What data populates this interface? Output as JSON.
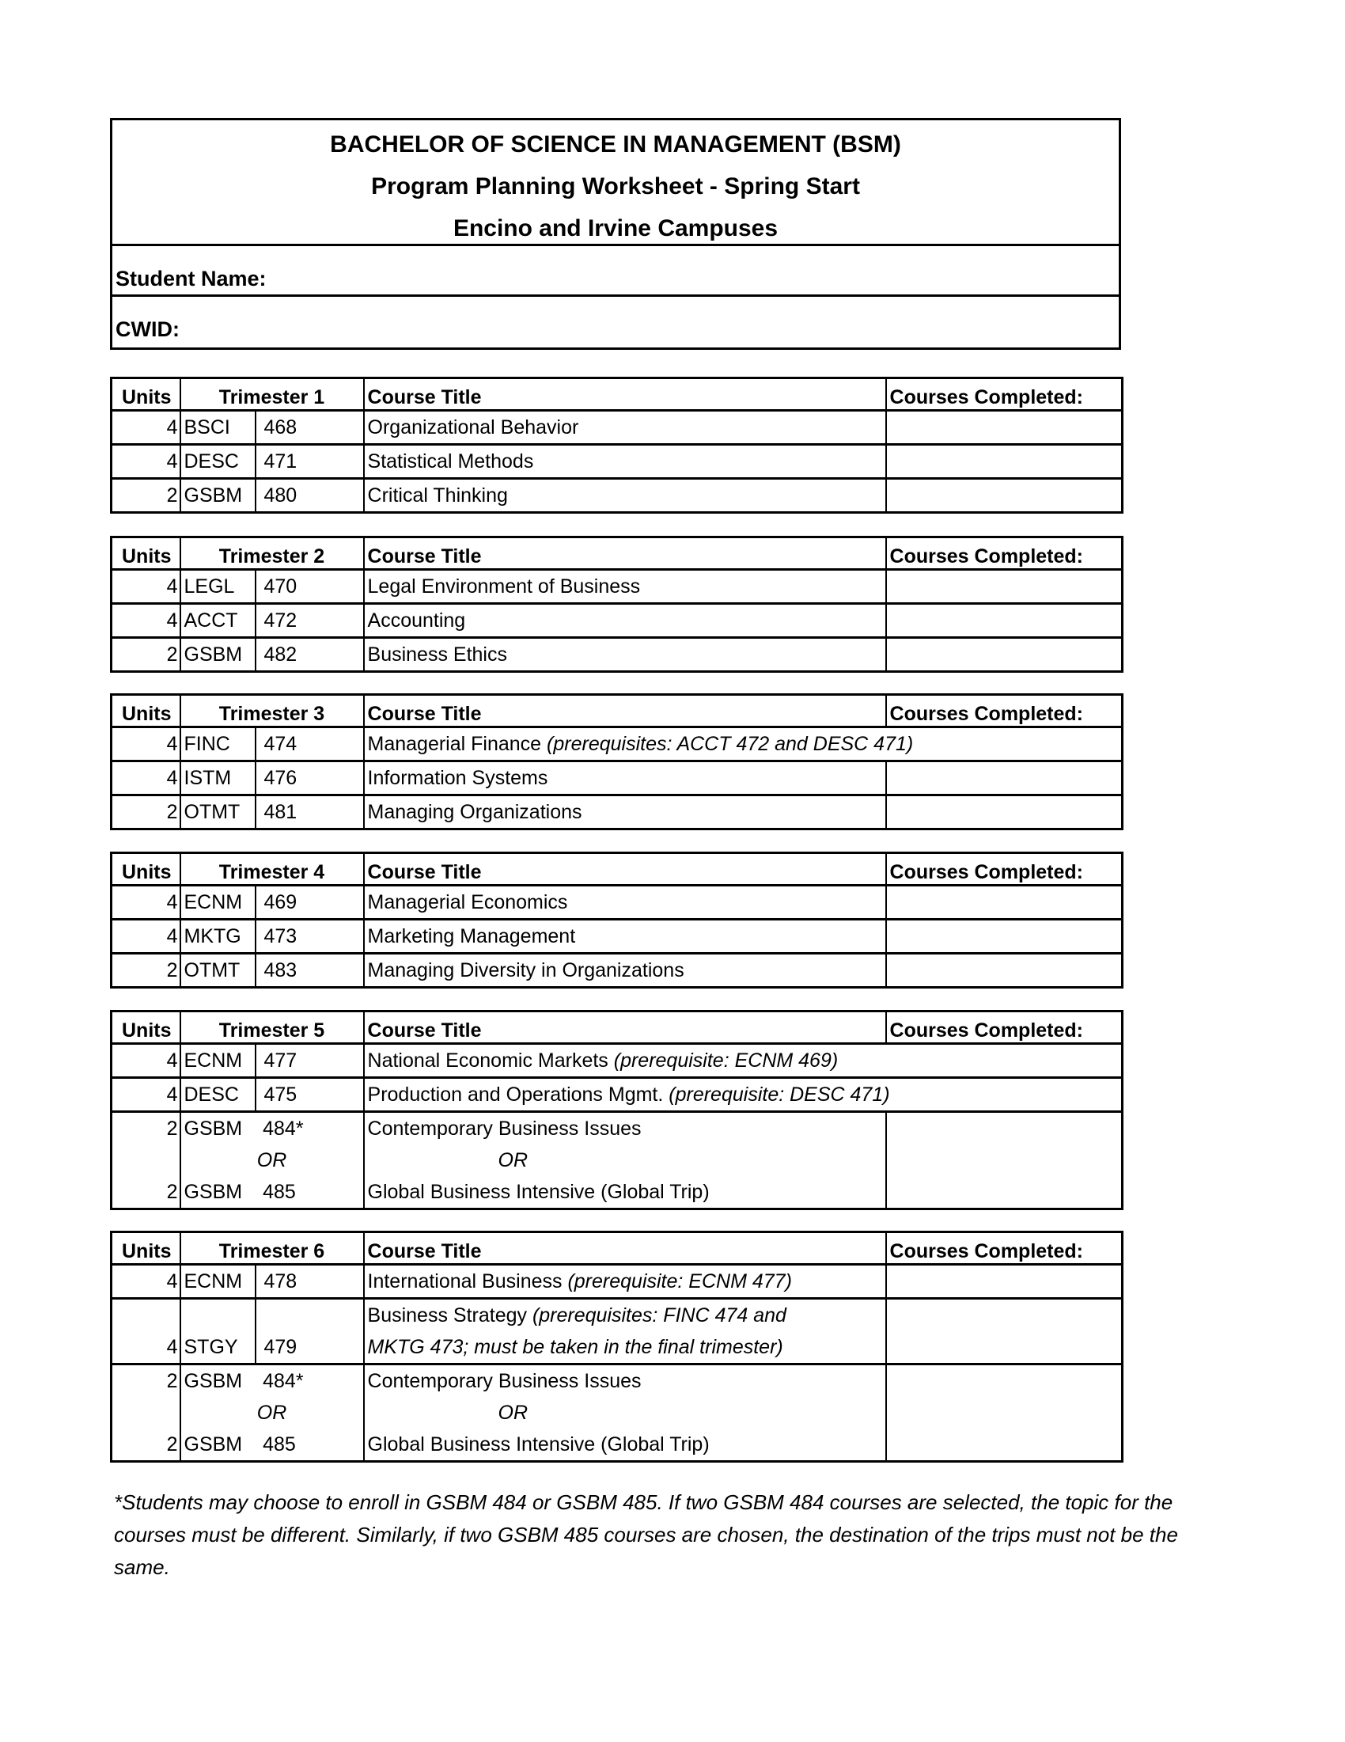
{
  "header": {
    "title": "BACHELOR OF SCIENCE IN MANAGEMENT (BSM)",
    "subtitle": "Program Planning Worksheet - Spring Start",
    "campuses": "Encino and Irvine Campuses",
    "student_name_label": "Student Name:",
    "cwid_label": "CWID:"
  },
  "columns": {
    "units": "Units",
    "title": "Course Title",
    "completed": "Courses Completed:"
  },
  "trimesters": [
    {
      "label": "Trimester 1",
      "rows": [
        {
          "lines": [
            {
              "units": "4",
              "dept": "BSCI",
              "num": "468",
              "title": "Organizational Behavior"
            }
          ]
        },
        {
          "lines": [
            {
              "units": "4",
              "dept": "DESC",
              "num": "471",
              "title": "Statistical Methods"
            }
          ]
        },
        {
          "lines": [
            {
              "units": "2",
              "dept": "GSBM",
              "num": "480",
              "title": "Critical Thinking"
            }
          ]
        }
      ]
    },
    {
      "label": "Trimester 2",
      "rows": [
        {
          "lines": [
            {
              "units": "4",
              "dept": "LEGL",
              "num": "470",
              "title": "Legal Environment of Business"
            }
          ]
        },
        {
          "lines": [
            {
              "units": "4",
              "dept": "ACCT",
              "num": "472",
              "title": "Accounting"
            }
          ]
        },
        {
          "lines": [
            {
              "units": "2",
              "dept": "GSBM",
              "num": "482",
              "title": "Business Ethics"
            }
          ]
        }
      ]
    },
    {
      "label": "Trimester 3",
      "rows": [
        {
          "span": true,
          "lines": [
            {
              "units": "4",
              "dept": "FINC",
              "num": "474",
              "title": "Managerial Finance ",
              "prereq": "(prerequisites: ACCT 472 and DESC 471)"
            }
          ]
        },
        {
          "lines": [
            {
              "units": "4",
              "dept": "ISTM",
              "num": "476",
              "title": "Information Systems"
            }
          ]
        },
        {
          "lines": [
            {
              "units": "2",
              "dept": "OTMT",
              "num": "481",
              "title": "Managing Organizations"
            }
          ]
        }
      ]
    },
    {
      "label": "Trimester 4",
      "rows": [
        {
          "lines": [
            {
              "units": "4",
              "dept": "ECNM",
              "num": "469",
              "title": "Managerial Economics"
            }
          ]
        },
        {
          "lines": [
            {
              "units": "4",
              "dept": "MKTG",
              "num": "473",
              "title": "Marketing Management"
            }
          ]
        },
        {
          "lines": [
            {
              "units": "2",
              "dept": "OTMT",
              "num": "483",
              "title": "Managing Diversity in Organizations"
            }
          ]
        }
      ]
    },
    {
      "label": "Trimester 5",
      "rows": [
        {
          "span": true,
          "lines": [
            {
              "units": "4",
              "dept": "ECNM",
              "num": "477",
              "title": "National Economic Markets ",
              "prereq": "(prerequisite: ECNM 469)"
            }
          ]
        },
        {
          "span": true,
          "lines": [
            {
              "units": "4",
              "dept": "DESC",
              "num": "475",
              "title": "Production and Operations Mgmt. ",
              "prereq": "(prerequisite: DESC 471)"
            }
          ]
        },
        {
          "merged": true,
          "lines": [
            {
              "units": "2",
              "dept": "GSBM",
              "num": "484*",
              "title": "Contemporary Business Issues"
            },
            {
              "or": "OR",
              "title_or": "OR"
            },
            {
              "units": "2",
              "dept": "GSBM",
              "num": "485",
              "title": "Global Business Intensive (Global Trip)"
            }
          ]
        }
      ]
    },
    {
      "label": "Trimester 6",
      "rows": [
        {
          "lines": [
            {
              "units": "4",
              "dept": "ECNM",
              "num": "478",
              "title": "International Business ",
              "prereq": "(prerequisite: ECNM 477)"
            }
          ]
        },
        {
          "lines": [
            {
              "title": "Business Strategy ",
              "prereq": "(prerequisites: FINC 474 and"
            },
            {
              "units": "4",
              "dept": "STGY",
              "num": "479",
              "prereq": "MKTG 473; must be taken in the final trimester)"
            }
          ]
        },
        {
          "merged": true,
          "lines": [
            {
              "units": "2",
              "dept": "GSBM",
              "num": "484*",
              "title": "Contemporary Business Issues"
            },
            {
              "or": "OR",
              "title_or": "OR"
            },
            {
              "units": "2",
              "dept": "GSBM",
              "num": "485",
              "title": "Global Business Intensive (Global Trip)"
            }
          ]
        }
      ]
    }
  ],
  "footnote": "*Students may choose to enroll in GSBM 484 or GSBM 485. If two GSBM 484 courses are selected, the topic for the courses must be different. Similarly, if two GSBM 485 courses are chosen, the destination of the trips must not be the same."
}
